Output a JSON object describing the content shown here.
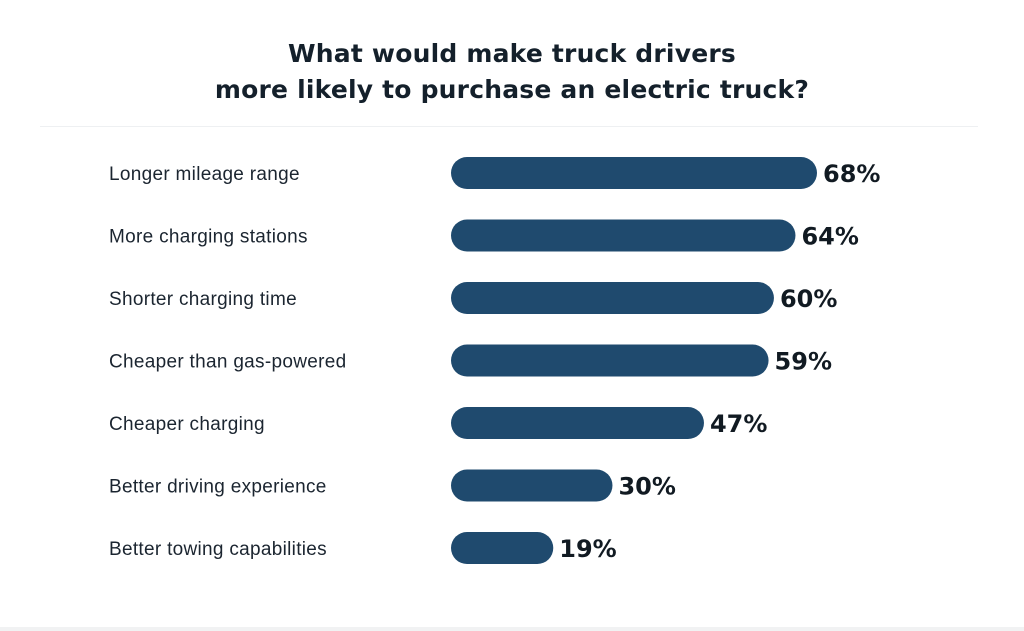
{
  "chart_data": {
    "type": "bar",
    "orientation": "horizontal",
    "title": "What would make truck drivers\nmore likely to purchase an electric truck?",
    "title_lines": [
      "What would make truck drivers",
      "more likely to purchase an electric truck?"
    ],
    "categories": [
      "Longer mileage range",
      "More charging stations",
      "Shorter charging time",
      "Cheaper than gas-powered",
      "Cheaper charging",
      "Better driving experience",
      "Better towing capabilities"
    ],
    "values": [
      68,
      64,
      60,
      59,
      47,
      30,
      19
    ],
    "value_labels": [
      "68%",
      "64%",
      "60%",
      "59%",
      "47%",
      "30%",
      "19%"
    ],
    "unit": "%",
    "xlim": [
      0,
      68
    ],
    "grid": false,
    "colors": {
      "bar": "#1f4a6e",
      "text": "#14202b"
    }
  }
}
